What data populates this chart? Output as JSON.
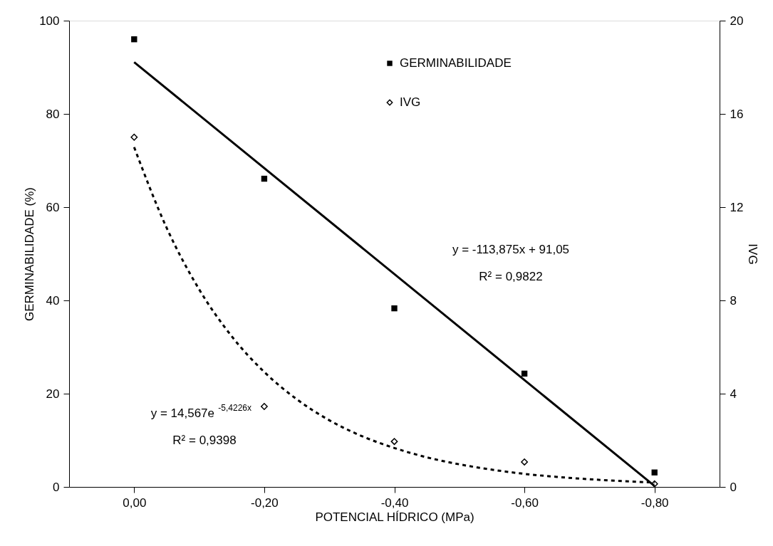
{
  "chart_data": {
    "type": "scatter",
    "xlabel": "POTENCIAL HÍDRICO (MPa)",
    "ylabel": "GERMINABILIDADE (%)",
    "y2label": "IVG",
    "x": [
      0,
      -0.2,
      -0.4,
      -0.6,
      -0.8
    ],
    "series": [
      {
        "name": "GERMINABILIDADE",
        "marker": "square",
        "color": "#000000",
        "values": [
          96.0,
          66.1,
          38.3,
          24.3,
          3.1
        ]
      },
      {
        "name": "IVG",
        "marker": "diamond",
        "color": "#000000",
        "axis": "y2",
        "values": [
          15.0,
          3.45,
          1.95,
          1.07,
          0.13
        ]
      },
      {
        "type": "line",
        "line_style": "solid",
        "color": "#000000",
        "x": [
          0,
          -0.8
        ],
        "values": [
          91.1,
          0.2
        ]
      },
      {
        "type": "line",
        "line_style": "dashed",
        "color": "#000000",
        "axis": "y2",
        "x": [
          0,
          -0.05,
          -0.1,
          -0.15,
          -0.2,
          -0.25,
          -0.3,
          -0.35,
          -0.4,
          -0.45,
          -0.5,
          -0.55,
          -0.6,
          -0.65,
          -0.7,
          -0.75,
          -0.8
        ],
        "values": [
          14.57,
          11.11,
          8.47,
          6.46,
          4.93,
          3.76,
          2.86,
          2.18,
          1.67,
          1.27,
          0.97,
          0.74,
          0.56,
          0.43,
          0.33,
          0.25,
          0.19
        ]
      }
    ],
    "xlim": [
      0.1,
      -0.9
    ],
    "xticks": [
      {
        "value": 0,
        "label": "0,00"
      },
      {
        "value": -0.2,
        "label": "-0,20"
      },
      {
        "value": -0.4,
        "label": "-0,40"
      },
      {
        "value": -0.6,
        "label": "-0,60"
      },
      {
        "value": -0.8,
        "label": "-0,80"
      }
    ],
    "ylim": [
      0,
      100
    ],
    "yticks": [
      0,
      20,
      40,
      60,
      80,
      100
    ],
    "y2lim": [
      0,
      20
    ],
    "y2ticks": [
      0,
      4,
      8,
      12,
      16,
      20
    ],
    "annotations": [
      "y = -113,875x + 91,05",
      "R² = 0,9822",
      "y = 14,567e$^{-5,4226x}$",
      "R² = 0,9398"
    ],
    "legend": "top right",
    "grid": false
  }
}
